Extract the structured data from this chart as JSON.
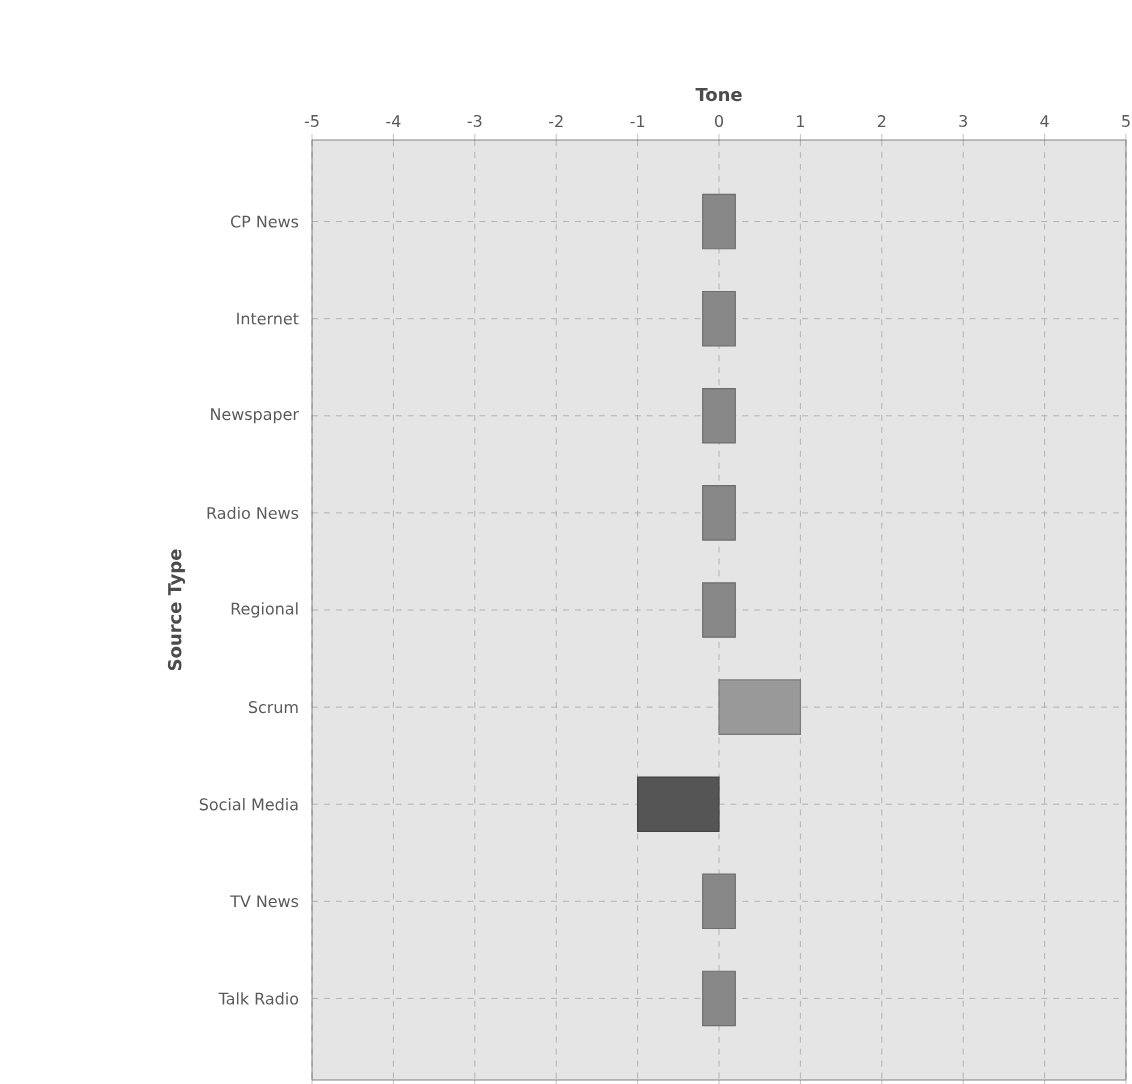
{
  "chart_data": {
    "type": "bar",
    "orientation": "horizontal",
    "xlabel": "Tone",
    "ylabel": "Source Type",
    "categories": [
      "CP News",
      "Internet",
      "Newspaper",
      "Radio News",
      "Regional",
      "Scrum",
      "Social Media",
      "TV News",
      "Talk Radio"
    ],
    "base": [
      -0.2,
      -0.2,
      -0.2,
      -0.2,
      -0.2,
      0,
      0,
      -0.2,
      -0.2
    ],
    "values": [
      0.4,
      0.4,
      0.4,
      0.4,
      0.4,
      1,
      -1,
      0.4,
      0.4
    ],
    "colors": [
      "#888888",
      "#888888",
      "#888888",
      "#888888",
      "#888888",
      "#999999",
      "#555555",
      "#888888",
      "#888888"
    ],
    "xlim": [
      -5,
      5
    ],
    "xticks": [
      -5,
      -4,
      -3,
      -2,
      -1,
      0,
      1,
      2,
      3,
      4,
      5
    ],
    "grid": true
  }
}
